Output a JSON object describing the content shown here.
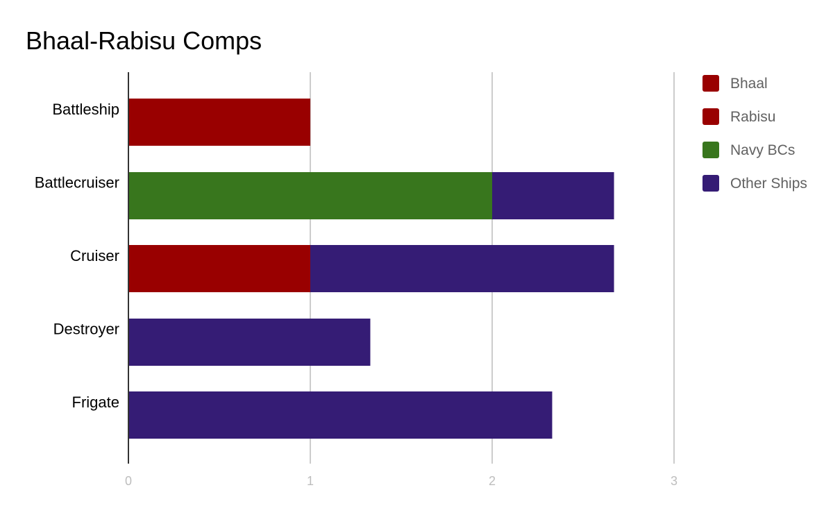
{
  "chart_data": {
    "type": "bar",
    "orientation": "horizontal",
    "stacked": true,
    "title": "Bhaal-Rabisu Comps",
    "xlabel": "",
    "ylabel": "",
    "categories": [
      "Battleship",
      "Battlecruiser",
      "Cruiser",
      "Destroyer",
      "Frigate"
    ],
    "series": [
      {
        "name": "Bhaal",
        "color": "#990000",
        "values": [
          0,
          0,
          0,
          0,
          0
        ]
      },
      {
        "name": "Rabisu",
        "color": "#990000",
        "values": [
          1,
          0,
          1,
          0,
          0
        ]
      },
      {
        "name": "Navy BCs",
        "color": "#38761d",
        "values": [
          0,
          2,
          0,
          0,
          0
        ]
      },
      {
        "name": "Other Ships",
        "color": "#351c75",
        "values": [
          0,
          0.67,
          1.67,
          1.33,
          2.33
        ]
      }
    ],
    "xlim": [
      0,
      3
    ],
    "xticks": [
      "0",
      "1",
      "2",
      "3"
    ],
    "grid": true,
    "legend_position": "right"
  }
}
